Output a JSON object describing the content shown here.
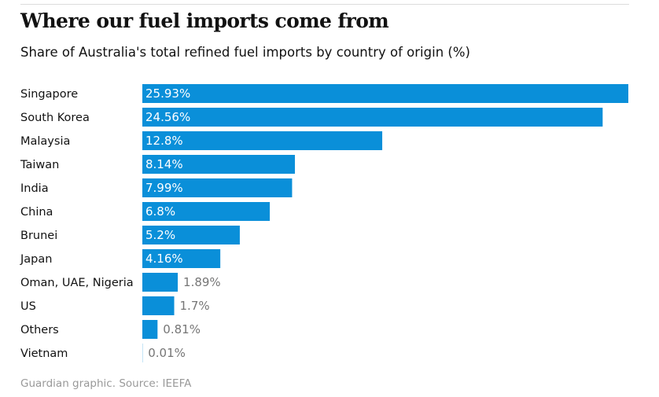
{
  "header": {
    "title": "Where our fuel imports come from",
    "subtitle": "Share of Australia's total refined fuel imports by country of origin (%)"
  },
  "footer": {
    "source": "Guardian graphic. Source: IEEFA"
  },
  "colors": {
    "bar": "#0a8fd9",
    "label_inside": "#ffffff",
    "label_outside": "#767676",
    "category_text": "#121212"
  },
  "chart_data": {
    "type": "bar",
    "orientation": "horizontal",
    "title": "Where our fuel imports come from",
    "subtitle": "Share of Australia's total refined fuel imports by country of origin (%)",
    "xlabel": "",
    "ylabel": "",
    "xlim": [
      0,
      25.93
    ],
    "grid": false,
    "legend": "none",
    "categories": [
      "Singapore",
      "South Korea",
      "Malaysia",
      "Taiwan",
      "India",
      "China",
      "Brunei",
      "Japan",
      "Oman, UAE, Nigeria",
      "US",
      "Others",
      "Vietnam"
    ],
    "values": [
      25.93,
      24.56,
      12.8,
      8.14,
      7.99,
      6.8,
      5.2,
      4.16,
      1.89,
      1.7,
      0.81,
      0.01
    ],
    "labels": [
      "25.93%",
      "24.56%",
      "12.8%",
      "8.14%",
      "7.99%",
      "6.8%",
      "5.2%",
      "4.16%",
      "1.89%",
      "1.7%",
      "0.81%",
      "0.01%"
    ]
  }
}
